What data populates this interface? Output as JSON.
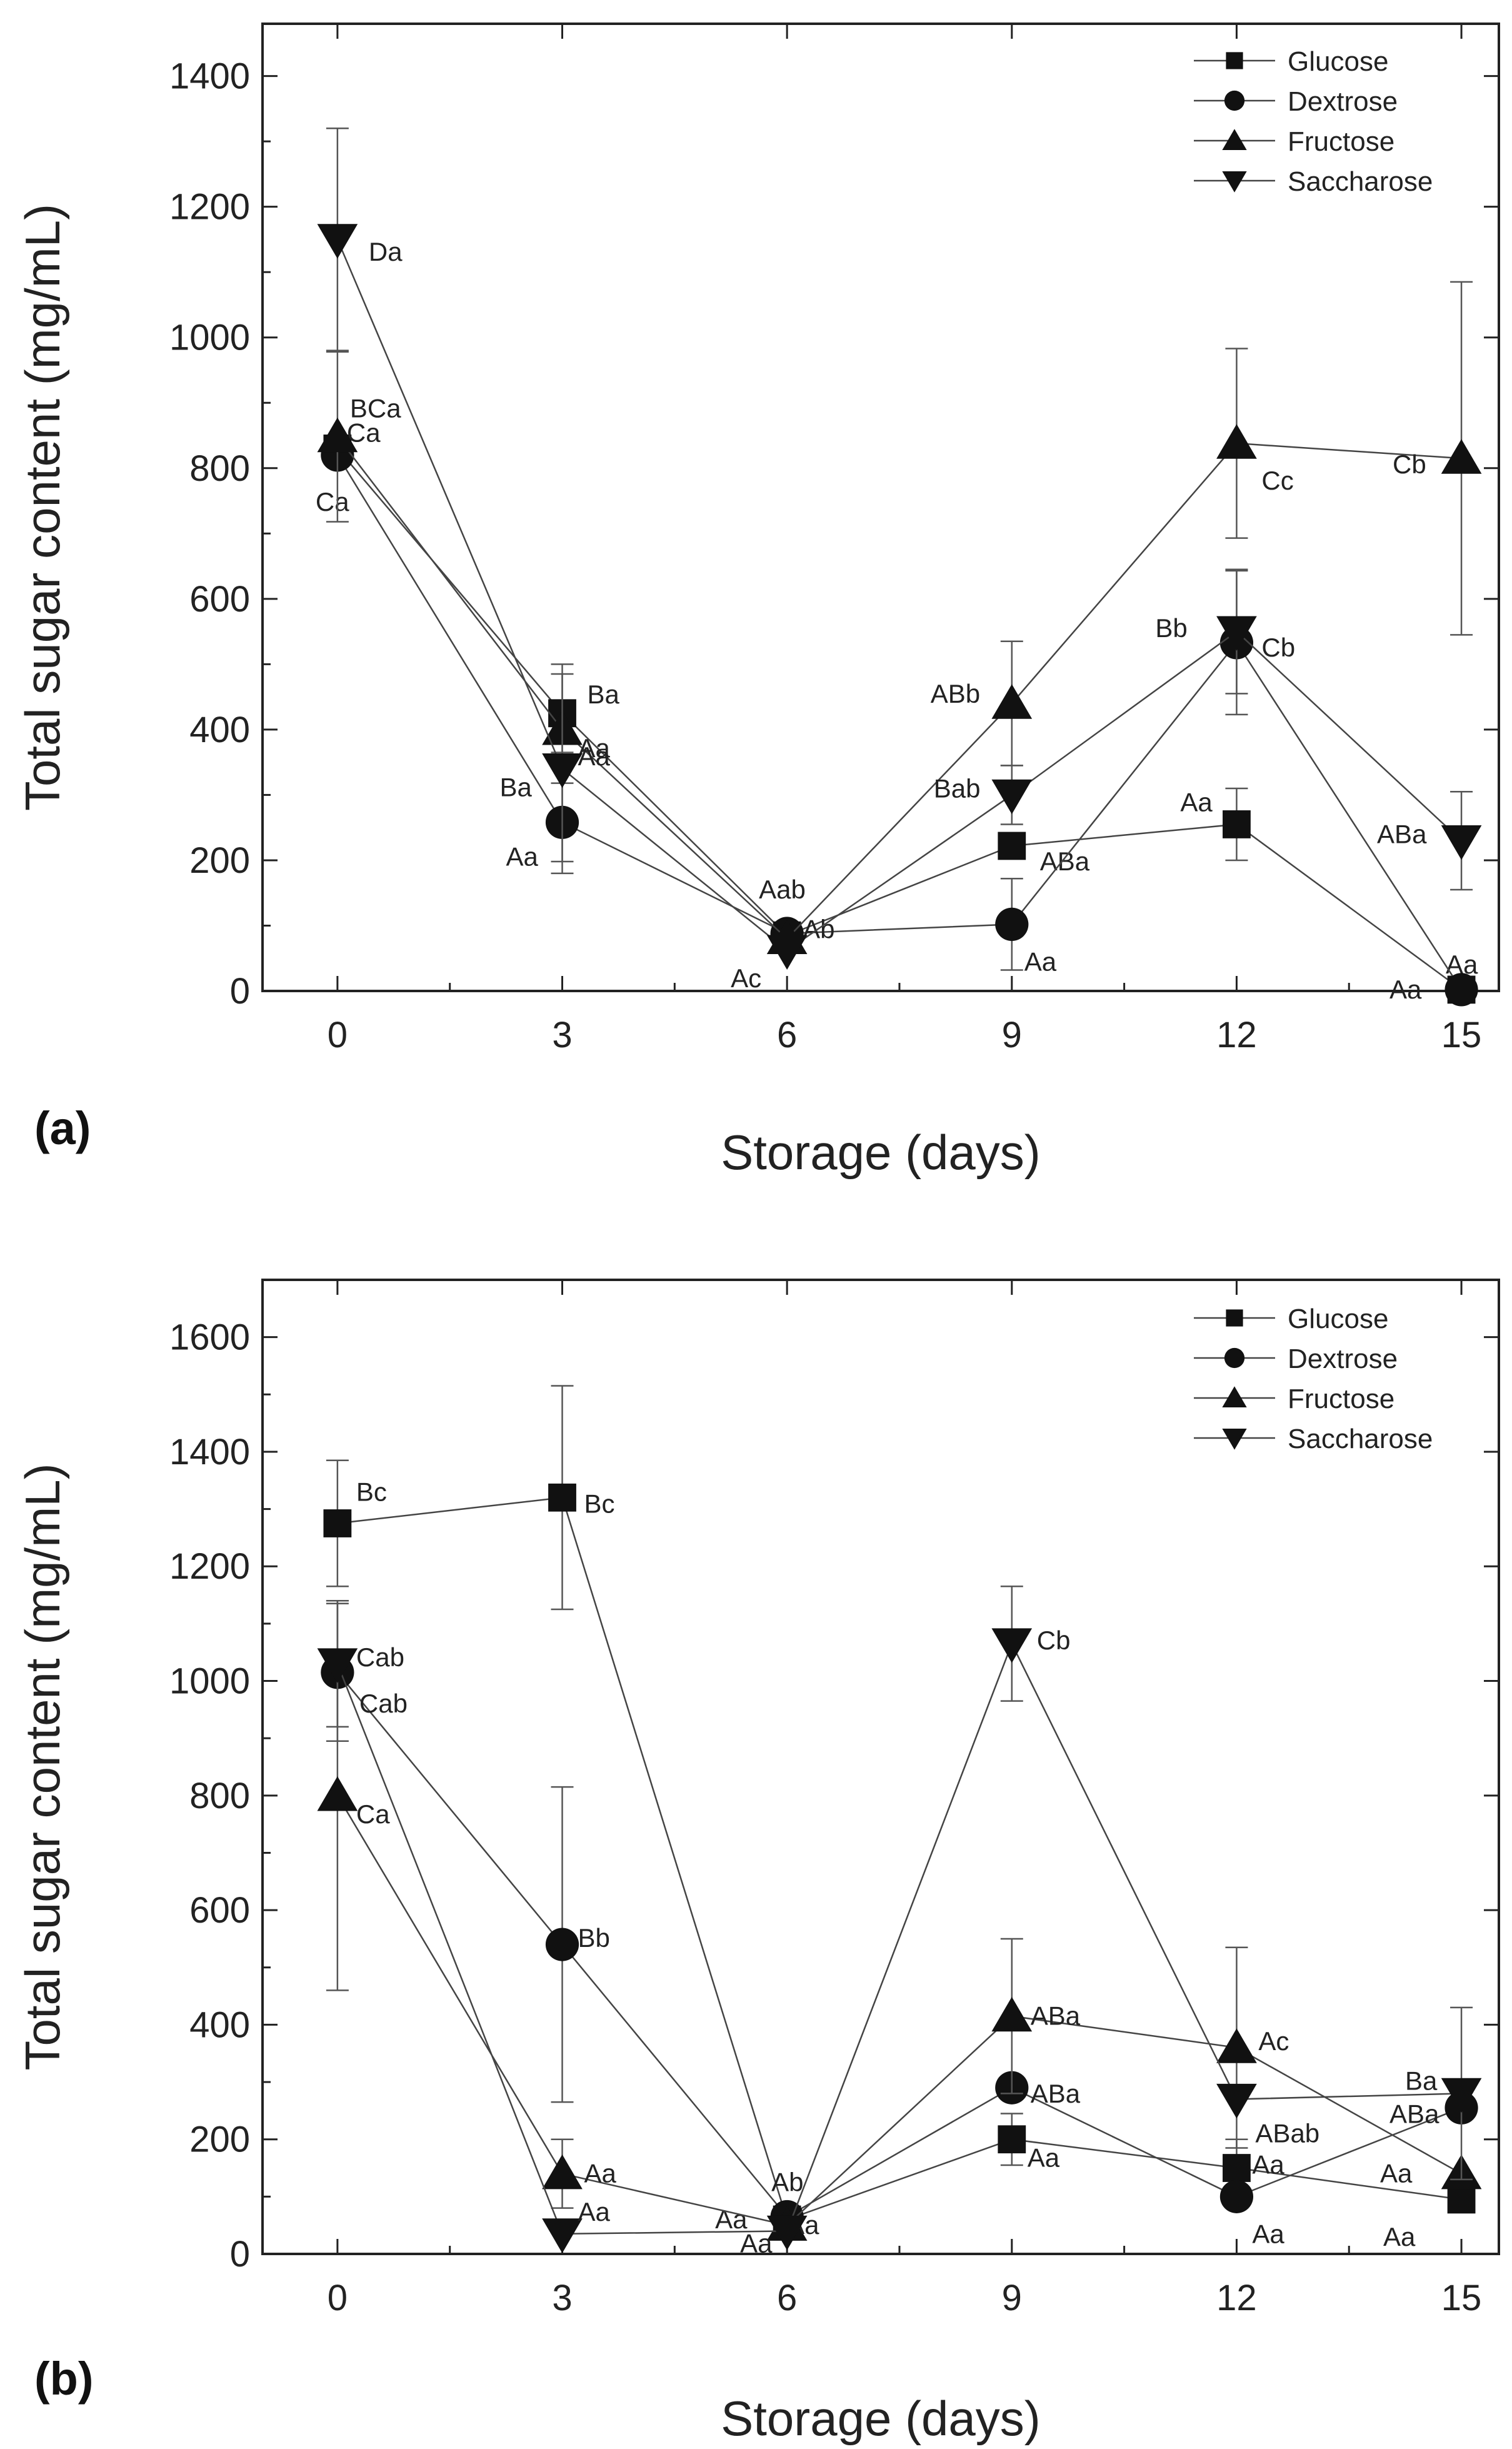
{
  "chart_data": [
    {
      "type": "line",
      "panel_label": "(a)",
      "xlabel": "Storage (days)",
      "ylabel": "Total sugar content (mg/mL)",
      "x": [
        0,
        3,
        6,
        9,
        12,
        15
      ],
      "xlim": [
        -1,
        15.5
      ],
      "ylim": [
        0,
        1480
      ],
      "yticks": [
        0,
        200,
        400,
        600,
        800,
        1000,
        1200,
        1400
      ],
      "legend_position": "top-right",
      "series": [
        {
          "name": "Glucose",
          "marker": "square",
          "values": [
            830,
            425,
            85,
            222,
            255,
            2
          ],
          "errors": [
            0,
            60,
            0,
            0,
            55,
            0
          ],
          "labels": [
            "",
            "Ba",
            "",
            "ABa",
            "Aa",
            "Aa"
          ]
        },
        {
          "name": "Dextrose",
          "marker": "circle",
          "values": [
            820,
            258,
            88,
            102,
            533,
            2
          ],
          "errors": [
            0,
            60,
            0,
            70,
            110,
            0
          ],
          "labels": [
            "Ca",
            "Aa",
            "Aab",
            "Aa",
            "Cb",
            "Aa"
          ]
        },
        {
          "name": "Fructose",
          "marker": "triangle-up",
          "values": [
            848,
            400,
            80,
            440,
            838,
            815
          ],
          "errors": [
            130,
            0,
            0,
            95,
            145,
            270
          ],
          "labels": [
            "BCa",
            "Aa",
            "Ab",
            "ABb",
            "Cc",
            "Cb"
          ]
        },
        {
          "name": "Saccharose",
          "marker": "triangle-down",
          "values": [
            1150,
            340,
            62,
            300,
            550,
            230
          ],
          "errors": [
            170,
            160,
            0,
            45,
            95,
            75
          ],
          "labels": [
            "Da",
            "Ba",
            "Ac",
            "Bab",
            "Bb",
            "ABa"
          ]
        }
      ],
      "extra_labels": [
        "Ca",
        "Aa"
      ]
    },
    {
      "type": "line",
      "panel_label": "(b)",
      "xlabel": "Storage (days)",
      "ylabel": "Total sugar content (mg/mL)",
      "x": [
        0,
        3,
        6,
        9,
        12,
        15
      ],
      "xlim": [
        -1,
        15.5
      ],
      "ylim": [
        0,
        1700
      ],
      "yticks": [
        0,
        200,
        400,
        600,
        800,
        1000,
        1200,
        1400,
        1600
      ],
      "legend_position": "top-right",
      "series": [
        {
          "name": "Glucose",
          "marker": "square",
          "values": [
            1275,
            1320,
            60,
            200,
            150,
            95
          ],
          "errors": [
            110,
            195,
            0,
            45,
            50,
            0
          ],
          "labels": [
            "Bc",
            "Bc",
            "Aa",
            "Aa",
            "Aa",
            "Aa"
          ]
        },
        {
          "name": "Dextrose",
          "marker": "circle",
          "values": [
            1015,
            540,
            65,
            290,
            100,
            255
          ],
          "errors": [
            120,
            275,
            0,
            0,
            0,
            0
          ],
          "labels": [
            "Cab",
            "Bb",
            "Ab",
            "ABa",
            "Aa",
            "ABa"
          ]
        },
        {
          "name": "Fructose",
          "marker": "triangle-up",
          "values": [
            800,
            140,
            50,
            415,
            360,
            140
          ],
          "errors": [
            340,
            60,
            0,
            135,
            175,
            0
          ],
          "labels": [
            "Ca",
            "Aa",
            "Aa",
            "ABa",
            "Ac",
            "Aa"
          ]
        },
        {
          "name": "Saccharose",
          "marker": "triangle-down",
          "values": [
            1030,
            35,
            40,
            1065,
            270,
            280
          ],
          "errors": [
            110,
            0,
            0,
            100,
            0,
            150
          ],
          "labels": [
            "Cab",
            "Aa",
            "Aa",
            "Cb",
            "ABab",
            "Ba"
          ]
        }
      ]
    }
  ]
}
